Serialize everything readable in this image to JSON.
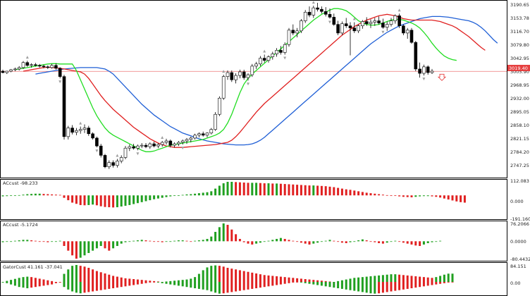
{
  "price_axis": {
    "labels": [
      "3190.65",
      "3153.78",
      "3116.70",
      "3079.80",
      "3042.95",
      "3005.90",
      "2968.95",
      "2932.00",
      "2895.05",
      "2858.10",
      "2821.15",
      "2784.20",
      "2747.25"
    ],
    "current_price": "3019.40",
    "current_price_color": "#e64040"
  },
  "panels": [
    {
      "id": "ac1",
      "label": "ACcust -98.233",
      "axis": [
        "112.083",
        "0.000",
        "-191.160"
      ]
    },
    {
      "id": "ac2",
      "label": "ACcust -5.1724",
      "axis": [
        "76.2066",
        "0.0000",
        "-80.4432"
      ]
    },
    {
      "id": "gator",
      "label": "GatorCust 41.161 -37.041",
      "axis": [
        "84.151",
        "0.00"
      ]
    }
  ],
  "colors": {
    "jaw_line": "#1f5fd6",
    "teeth_line": "#e02020",
    "lips_line": "#22dd22",
    "bar_up": "#20a020",
    "bar_down": "#e02020",
    "candle": "#000000",
    "grid": "#c8c8c8",
    "fractal_arrow": "#a0a0a0",
    "sell_arrow": "#e64040"
  },
  "icons": {
    "fractal": "fractal-arrow-icon",
    "signal": "sell-arrow-icon"
  },
  "chart_data": {
    "type": "candlestick",
    "ylim": [
      2728,
      3210
    ],
    "candles": [
      [
        3020,
        3024,
        3014,
        3016
      ],
      [
        3016,
        3021,
        3012,
        3020
      ],
      [
        3020,
        3026,
        3017,
        3024
      ],
      [
        3024,
        3030,
        3020,
        3026
      ],
      [
        3026,
        3034,
        3022,
        3030
      ],
      [
        3030,
        3048,
        3026,
        3044
      ],
      [
        3044,
        3049,
        3032,
        3036
      ],
      [
        3036,
        3042,
        3030,
        3038
      ],
      [
        3038,
        3043,
        3033,
        3036
      ],
      [
        3036,
        3040,
        3030,
        3034
      ],
      [
        3034,
        3038,
        3028,
        3032
      ],
      [
        3032,
        3036,
        3026,
        3030
      ],
      [
        3030,
        3040,
        3027,
        3036
      ],
      [
        3036,
        3042,
        3024,
        3028
      ],
      [
        3028,
        3031,
        3000,
        3005
      ],
      [
        3005,
        3010,
        2830,
        2838
      ],
      [
        2838,
        2868,
        2830,
        2862
      ],
      [
        2862,
        2870,
        2844,
        2850
      ],
      [
        2850,
        2862,
        2842,
        2855
      ],
      [
        2855,
        2866,
        2846,
        2858
      ],
      [
        2858,
        2872,
        2848,
        2862
      ],
      [
        2862,
        2868,
        2840,
        2846
      ],
      [
        2846,
        2850,
        2830,
        2834
      ],
      [
        2834,
        2838,
        2808,
        2812
      ],
      [
        2812,
        2818,
        2780,
        2786
      ],
      [
        2786,
        2790,
        2750,
        2754
      ],
      [
        2754,
        2772,
        2748,
        2766
      ],
      [
        2766,
        2772,
        2752,
        2758
      ],
      [
        2758,
        2776,
        2752,
        2770
      ],
      [
        2770,
        2786,
        2764,
        2780
      ],
      [
        2780,
        2812,
        2775,
        2806
      ],
      [
        2806,
        2816,
        2798,
        2810
      ],
      [
        2810,
        2818,
        2802,
        2806
      ],
      [
        2806,
        2816,
        2800,
        2812
      ],
      [
        2812,
        2820,
        2806,
        2814
      ],
      [
        2814,
        2820,
        2806,
        2810
      ],
      [
        2810,
        2822,
        2804,
        2818
      ],
      [
        2818,
        2824,
        2808,
        2812
      ],
      [
        2812,
        2820,
        2806,
        2816
      ],
      [
        2816,
        2826,
        2810,
        2822
      ],
      [
        2822,
        2832,
        2816,
        2826
      ],
      [
        2826,
        2830,
        2808,
        2814
      ],
      [
        2814,
        2822,
        2808,
        2818
      ],
      [
        2818,
        2826,
        2812,
        2822
      ],
      [
        2822,
        2830,
        2816,
        2826
      ],
      [
        2826,
        2834,
        2818,
        2830
      ],
      [
        2830,
        2838,
        2822,
        2834
      ],
      [
        2834,
        2846,
        2830,
        2842
      ],
      [
        2842,
        2850,
        2836,
        2846
      ],
      [
        2846,
        2852,
        2838,
        2842
      ],
      [
        2842,
        2850,
        2836,
        2848
      ],
      [
        2848,
        2862,
        2844,
        2858
      ],
      [
        2858,
        2906,
        2854,
        2900
      ],
      [
        2900,
        2950,
        2895,
        2945
      ],
      [
        2945,
        3010,
        2940,
        3005
      ],
      [
        3005,
        3022,
        2996,
        3016
      ],
      [
        3016,
        3022,
        2990,
        2996
      ],
      [
        2996,
        3014,
        2986,
        3008
      ],
      [
        3008,
        3024,
        3000,
        3018
      ],
      [
        3018,
        3024,
        2996,
        3002
      ],
      [
        3002,
        3014,
        2994,
        3010
      ],
      [
        3010,
        3040,
        3004,
        3034
      ],
      [
        3034,
        3046,
        3026,
        3040
      ],
      [
        3040,
        3062,
        3034,
        3056
      ],
      [
        3056,
        3066,
        3044,
        3050
      ],
      [
        3050,
        3064,
        3044,
        3060
      ],
      [
        3060,
        3074,
        3052,
        3068
      ],
      [
        3068,
        3084,
        3060,
        3078
      ],
      [
        3078,
        3090,
        3066,
        3072
      ],
      [
        3072,
        3100,
        3066,
        3094
      ],
      [
        3094,
        3140,
        3088,
        3134
      ],
      [
        3134,
        3150,
        3120,
        3126
      ],
      [
        3126,
        3140,
        3114,
        3132
      ],
      [
        3132,
        3165,
        3126,
        3160
      ],
      [
        3160,
        3190,
        3154,
        3184
      ],
      [
        3184,
        3200,
        3170,
        3176
      ],
      [
        3176,
        3202,
        3168,
        3196
      ],
      [
        3196,
        3210,
        3186,
        3192
      ],
      [
        3192,
        3200,
        3180,
        3186
      ],
      [
        3186,
        3198,
        3172,
        3178
      ],
      [
        3178,
        3194,
        3166,
        3170
      ],
      [
        3170,
        3180,
        3146,
        3150
      ],
      [
        3150,
        3160,
        3120,
        3126
      ],
      [
        3126,
        3158,
        3120,
        3152
      ],
      [
        3152,
        3168,
        3140,
        3146
      ],
      [
        3146,
        3156,
        3064,
        3140
      ],
      [
        3140,
        3156,
        3126,
        3132
      ],
      [
        3132,
        3150,
        3126,
        3146
      ],
      [
        3146,
        3162,
        3138,
        3158
      ],
      [
        3158,
        3170,
        3146,
        3152
      ],
      [
        3152,
        3164,
        3140,
        3156
      ],
      [
        3156,
        3168,
        3146,
        3160
      ],
      [
        3160,
        3172,
        3150,
        3154
      ],
      [
        3154,
        3166,
        3138,
        3142
      ],
      [
        3142,
        3158,
        3132,
        3150
      ],
      [
        3150,
        3168,
        3144,
        3160
      ],
      [
        3160,
        3178,
        3152,
        3174
      ],
      [
        3174,
        3180,
        3140,
        3146
      ],
      [
        3146,
        3150,
        3120,
        3126
      ],
      [
        3126,
        3140,
        3110,
        3134
      ],
      [
        3134,
        3140,
        3096,
        3100
      ],
      [
        3100,
        3104,
        3020,
        3026
      ],
      [
        3026,
        3044,
        3002,
        3014
      ],
      [
        3014,
        3038,
        3008,
        3032
      ],
      [
        3032,
        3036,
        3010,
        3016
      ],
      [
        3016,
        3026,
        3012,
        3020
      ]
    ],
    "jaw": [
      3012,
      3014,
      3016,
      3018,
      3020,
      3022,
      3024,
      3026,
      3027,
      3028,
      3029,
      3030,
      3030,
      3030,
      3030,
      3030,
      3028,
      3026,
      3020,
      3012,
      3000,
      2988,
      2976,
      2964,
      2952,
      2940,
      2928,
      2918,
      2908,
      2898,
      2890,
      2882,
      2874,
      2866,
      2860,
      2854,
      2848,
      2844,
      2840,
      2836,
      2832,
      2829,
      2826,
      2824,
      2822,
      2820,
      2818,
      2817,
      2816,
      2815,
      2815,
      2815,
      2816,
      2818,
      2822,
      2828,
      2836,
      2846,
      2856,
      2866,
      2876,
      2886,
      2896,
      2906,
      2916,
      2926,
      2936,
      2946,
      2956,
      2966,
      2976,
      2986,
      2996,
      3006,
      3016,
      3026,
      3036,
      3046,
      3056,
      3066,
      3076,
      3086,
      3096,
      3104,
      3112,
      3120,
      3128,
      3134,
      3140,
      3146,
      3150,
      3154,
      3158,
      3162,
      3166,
      3168,
      3170,
      3172,
      3172,
      3172,
      3171,
      3170,
      3168,
      3166,
      3164,
      3162,
      3160,
      3156,
      3150,
      3142,
      3132,
      3120,
      3108,
      3098
    ],
    "teeth": [
      3020,
      3022,
      3024,
      3026,
      3028,
      3030,
      3031,
      3030,
      3029,
      3028,
      3026,
      3024,
      3022,
      3020,
      3018,
      3012,
      3000,
      2984,
      2968,
      2952,
      2938,
      2926,
      2914,
      2904,
      2894,
      2884,
      2874,
      2864,
      2856,
      2848,
      2840,
      2832,
      2826,
      2820,
      2816,
      2812,
      2810,
      2808,
      2808,
      2808,
      2809,
      2810,
      2811,
      2812,
      2813,
      2814,
      2815,
      2816,
      2818,
      2820,
      2822,
      2828,
      2838,
      2850,
      2864,
      2878,
      2892,
      2906,
      2918,
      2930,
      2940,
      2950,
      2960,
      2970,
      2980,
      2990,
      3000,
      3010,
      3020,
      3030,
      3040,
      3050,
      3060,
      3070,
      3080,
      3090,
      3100,
      3110,
      3120,
      3128,
      3136,
      3144,
      3150,
      3156,
      3162,
      3166,
      3170,
      3174,
      3176,
      3178,
      3176,
      3174,
      3170,
      3166,
      3164,
      3162,
      3162,
      3162,
      3162,
      3162,
      3162,
      3160,
      3158,
      3154,
      3150,
      3146,
      3140,
      3132,
      3124,
      3116,
      3106,
      3096,
      3086,
      3078
    ],
    "lips": [
      3024,
      3026,
      3028,
      3030,
      3032,
      3034,
      3036,
      3038,
      3040,
      3041,
      3041,
      3040,
      3040,
      3040,
      3040,
      3022,
      2996,
      2970,
      2944,
      2918,
      2896,
      2878,
      2862,
      2850,
      2842,
      2836,
      2830,
      2824,
      2818,
      2812,
      2806,
      2800,
      2796,
      2796,
      2798,
      2802,
      2806,
      2810,
      2814,
      2816,
      2818,
      2820,
      2822,
      2824,
      2826,
      2828,
      2830,
      2834,
      2838,
      2842,
      2848,
      2858,
      2876,
      2900,
      2930,
      2960,
      2984,
      3000,
      3012,
      3022,
      3032,
      3042,
      3052,
      3062,
      3072,
      3082,
      3092,
      3102,
      3112,
      3122,
      3132,
      3142,
      3152,
      3162,
      3170,
      3178,
      3184,
      3190,
      3194,
      3194,
      3192,
      3188,
      3180,
      3170,
      3160,
      3154,
      3150,
      3148,
      3148,
      3150,
      3154,
      3158,
      3162,
      3164,
      3164,
      3162,
      3158,
      3154,
      3148,
      3140,
      3128,
      3114,
      3098,
      3084,
      3072,
      3062,
      3056,
      3052,
      3050
    ],
    "ac1": [
      -8,
      -6,
      -4,
      -2,
      2,
      6,
      10,
      12,
      14,
      14,
      12,
      10,
      8,
      6,
      4,
      -20,
      -40,
      -60,
      -70,
      -80,
      -82,
      -80,
      -76,
      -82,
      -90,
      -96,
      -98,
      -100,
      -98,
      -92,
      -86,
      -80,
      -72,
      -64,
      -56,
      -48,
      -40,
      -32,
      -26,
      -20,
      -14,
      -8,
      -4,
      0,
      4,
      8,
      10,
      14,
      18,
      22,
      26,
      34,
      56,
      80,
      100,
      112,
      112,
      110,
      108,
      106,
      104,
      104,
      104,
      102,
      100,
      100,
      98,
      98,
      96,
      94,
      92,
      90,
      88,
      86,
      84,
      82,
      82,
      80,
      78,
      76,
      72,
      68,
      62,
      56,
      50,
      46,
      40,
      34,
      28,
      22,
      18,
      14,
      10,
      6,
      2,
      0,
      -4,
      -8,
      -12,
      -14,
      -16,
      -12,
      -8,
      -6,
      -6,
      -8,
      -12,
      -18,
      -26,
      -34,
      -42,
      -50,
      -56,
      -60
    ],
    "ac2": [
      -4,
      -2,
      0,
      2,
      4,
      6,
      6,
      4,
      2,
      0,
      -2,
      -4,
      -2,
      0,
      2,
      -20,
      -40,
      -60,
      -74,
      -70,
      -60,
      -50,
      -40,
      -30,
      -20,
      -30,
      -40,
      -30,
      -20,
      -10,
      -4,
      0,
      2,
      4,
      6,
      4,
      2,
      0,
      -2,
      -4,
      -2,
      0,
      2,
      4,
      4,
      2,
      0,
      2,
      4,
      6,
      10,
      20,
      40,
      60,
      76,
      70,
      50,
      30,
      10,
      -4,
      -10,
      -14,
      -10,
      -6,
      -2,
      2,
      6,
      10,
      14,
      10,
      6,
      2,
      -2,
      -6,
      -10,
      -14,
      -10,
      -6,
      -2,
      2,
      6,
      2,
      -2,
      -6,
      -8,
      -4,
      0,
      4,
      8,
      4,
      0,
      -4,
      -8,
      -10,
      -6,
      -2,
      2,
      -2,
      -6,
      -10,
      -14,
      -18,
      -20,
      -14,
      -8,
      -4,
      0,
      2
    ],
    "gator_up": [
      0,
      5,
      10,
      15,
      20,
      24,
      26,
      24,
      20,
      16,
      12,
      8,
      4,
      0,
      0,
      40,
      62,
      80,
      84,
      80,
      76,
      70,
      62,
      54,
      48,
      42,
      36,
      30,
      26,
      22,
      18,
      16,
      14,
      12,
      10,
      8,
      6,
      4,
      2,
      0,
      2,
      4,
      6,
      8,
      10,
      12,
      16,
      24,
      40,
      58,
      72,
      80,
      82,
      80,
      76,
      70,
      66,
      62,
      58,
      54,
      50,
      46,
      42,
      38,
      34,
      32,
      30,
      28,
      26,
      24,
      22,
      20,
      18,
      16,
      14,
      12,
      10,
      8,
      6,
      4,
      2,
      0,
      4,
      8,
      12,
      16,
      20,
      22,
      24,
      26,
      28,
      30,
      32,
      34,
      36,
      38,
      38,
      36,
      34,
      32,
      30,
      28,
      26,
      24,
      22,
      20,
      24,
      30,
      36,
      41,
      41
    ],
    "gator_down": [
      0,
      -4,
      -8,
      -12,
      -16,
      -18,
      -20,
      -18,
      -16,
      -14,
      -12,
      -10,
      -8,
      -4,
      0,
      -16,
      -24,
      -30,
      -34,
      -36,
      -34,
      -32,
      -30,
      -28,
      -26,
      -24,
      -22,
      -20,
      -18,
      -16,
      -14,
      -12,
      -10,
      -8,
      -6,
      -4,
      -2,
      0,
      -2,
      -4,
      -6,
      -8,
      -10,
      -12,
      -14,
      -16,
      -18,
      -20,
      -22,
      -24,
      -26,
      -30,
      -34,
      -37,
      -36,
      -34,
      -32,
      -30,
      -28,
      -26,
      -24,
      -22,
      -20,
      -18,
      -16,
      -14,
      -12,
      -10,
      -8,
      -6,
      -4,
      -2,
      0,
      -2,
      -4,
      -6,
      -8,
      -10,
      -12,
      -14,
      -16,
      -18,
      -20,
      -22,
      -24,
      -26,
      -28,
      -30,
      -32,
      -34,
      -36,
      -37,
      -36,
      -34,
      -32,
      -30,
      -28,
      -26,
      -24,
      -22,
      -20,
      -18,
      -16,
      -14,
      -12,
      -10,
      -8,
      -6,
      -4,
      -2,
      0
    ]
  }
}
